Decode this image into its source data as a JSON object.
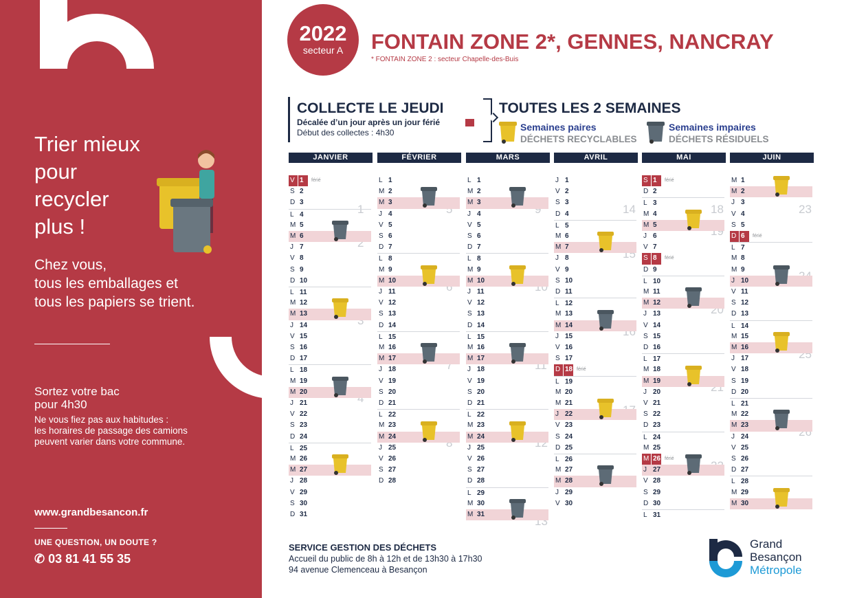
{
  "sidebar": {
    "slogan": [
      "Trier mieux",
      "pour",
      "recycler",
      "plus !"
    ],
    "sub_slogan": [
      "Chez vous,",
      "tous les emballages et",
      "tous les papiers se trient."
    ],
    "sortez_title": [
      "Sortez votre bac",
      "pour 4h30"
    ],
    "sortez_body": [
      "Ne vous fiez pas aux habitudes :",
      "les horaires de passage des camions",
      "peuvent varier dans votre commune."
    ],
    "website": "www.grandbesancon.fr",
    "question": "UNE QUESTION, UN DOUTE ?",
    "phone": "✆ 03 81 41 55 35"
  },
  "header": {
    "year": "2022",
    "sector": "secteur A",
    "title": "FONTAIN ZONE 2*, GENNES, NANCRAY",
    "footnote": "* FONTAIN ZONE 2 : secteur Chapelle-des-Buis",
    "collecte": "COLLECTE LE JEUDI",
    "decalee": "Décalée d’un jour après un jour férié",
    "debut": "Début des collectes : 4h30",
    "toutes": "TOUTES LES 2 SEMAINES",
    "paires_title": "Semaines paires",
    "paires_sub": "DÉCHETS RECYCLABLES",
    "impaires_title": "Semaines impaires",
    "impaires_sub": "DÉCHETS RÉSIDUELS"
  },
  "colors": {
    "brand_red": "#b53a45",
    "navy": "#1d2a44",
    "collect_row": "#f1d4d7",
    "recycl_bin": "#e8c22a",
    "residual_bin": "#5d6b76",
    "logo_blue": "#1d9ad6"
  },
  "ferie_label": "férié",
  "calendar": [
    {
      "name": "JANVIER",
      "start_dow": 5,
      "days": 31,
      "weeks": [
        "1",
        "2",
        "3",
        "4"
      ],
      "collect": {
        "6": "residual",
        "13": "recyclable",
        "20": "residual",
        "27": "recyclable"
      },
      "holidays": [
        "1"
      ]
    },
    {
      "name": "FÉVRIER",
      "start_dow": 1,
      "days": 28,
      "weeks": [
        "5",
        "6",
        "7",
        "8"
      ],
      "collect": {
        "3": "residual",
        "10": "recyclable",
        "17": "residual",
        "24": "recyclable"
      },
      "holidays": []
    },
    {
      "name": "MARS",
      "start_dow": 1,
      "days": 31,
      "weeks": [
        "9",
        "10",
        "11",
        "12",
        "13"
      ],
      "collect": {
        "3": "residual",
        "10": "recyclable",
        "17": "residual",
        "24": "recyclable",
        "31": "residual"
      },
      "holidays": []
    },
    {
      "name": "AVRIL",
      "start_dow": 4,
      "days": 30,
      "weeks": [
        "14",
        "15",
        "16",
        "17"
      ],
      "collect": {
        "7": "recyclable",
        "14": "residual",
        "22": "recyclable",
        "28": "residual"
      },
      "holidays": [
        "18"
      ]
    },
    {
      "name": "MAI",
      "start_dow": 6,
      "days": 31,
      "weeks": [
        "18",
        "19",
        "20",
        "21",
        "22"
      ],
      "collect": {
        "5": "recyclable",
        "12": "residual",
        "19": "recyclable",
        "27": "residual"
      },
      "holidays": [
        "1",
        "8",
        "26"
      ]
    },
    {
      "name": "JUIN",
      "start_dow": 2,
      "days": 30,
      "weeks": [
        "23",
        "24",
        "25",
        "26"
      ],
      "collect": {
        "2": "recyclable",
        "10": "residual",
        "16": "recyclable",
        "23": "residual",
        "30": "recyclable"
      },
      "holidays": [
        "6"
      ]
    }
  ],
  "day_letters": [
    "D",
    "L",
    "M",
    "M",
    "J",
    "V",
    "S"
  ],
  "footer": {
    "service_title": "SERVICE GESTION DES DÉCHETS",
    "hours": "Accueil du public de 8h à 12h et de 13h30 à 17h30",
    "address": "94 avenue Clemenceau à Besançon",
    "logo_lines": [
      "Grand",
      "Besançon",
      "Métropole"
    ]
  }
}
